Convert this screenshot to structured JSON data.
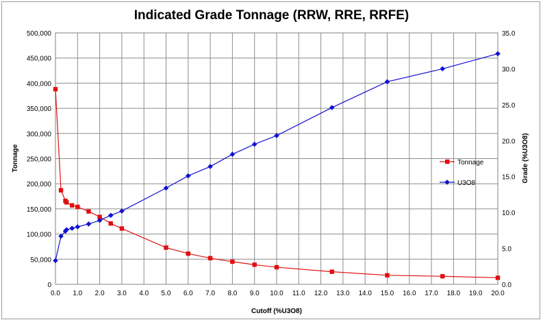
{
  "chart_data": {
    "type": "line",
    "title": "Indicated Grade Tonnage (RRW, RRE, RRFE)",
    "xlabel": "Cutoff (%U3O8)",
    "ylabel_left": "Tonnage",
    "ylabel_right": "Grade (%U3O8)",
    "xlim": [
      0,
      20
    ],
    "ylim_left": [
      0,
      500000
    ],
    "ylim_right": [
      0,
      35
    ],
    "grid": true,
    "legend_position": "right",
    "x_ticks": [
      "0.0",
      "1.0",
      "2.0",
      "3.0",
      "4.0",
      "5.0",
      "6.0",
      "7.0",
      "8.0",
      "9.0",
      "10.0",
      "11.0",
      "12.0",
      "13.0",
      "14.0",
      "15.0",
      "16.0",
      "17.0",
      "18.0",
      "19.0",
      "20.0"
    ],
    "y_left_ticks": [
      "0",
      "50,000",
      "100,000",
      "150,000",
      "200,000",
      "250,000",
      "300,000",
      "350,000",
      "400,000",
      "450,000",
      "500,000"
    ],
    "y_right_ticks": [
      "0.0",
      "5.0",
      "10.0",
      "15.0",
      "20.0",
      "25.0",
      "30.0",
      "35.0"
    ],
    "series": [
      {
        "name": "Tonnage",
        "axis": "left",
        "color": "#e01010",
        "marker": "square",
        "x": [
          0,
          0.25,
          0.45,
          0.5,
          0.75,
          1.0,
          1.5,
          2.0,
          2.5,
          3.0,
          5.0,
          6.0,
          7.0,
          8.0,
          9.0,
          10.0,
          12.5,
          15.0,
          17.5,
          20.0
        ],
        "values": [
          388000,
          187000,
          166000,
          163000,
          157000,
          154000,
          145000,
          134000,
          121000,
          111000,
          73000,
          61000,
          52000,
          45000,
          39000,
          34000,
          25000,
          18000,
          16000,
          13000
        ]
      },
      {
        "name": "U3O8",
        "axis": "right",
        "color": "#1010d0",
        "marker": "diamond",
        "x": [
          0,
          0.25,
          0.45,
          0.5,
          0.75,
          1.0,
          1.5,
          2.0,
          2.5,
          3.0,
          5.0,
          6.0,
          7.0,
          8.0,
          9.0,
          10.0,
          12.5,
          15.0,
          17.5,
          20.0
        ],
        "values": [
          3.3,
          6.7,
          7.4,
          7.6,
          7.8,
          8.0,
          8.4,
          8.9,
          9.6,
          10.2,
          13.4,
          15.1,
          16.4,
          18.1,
          19.5,
          20.7,
          24.6,
          28.2,
          30.0,
          32.1
        ]
      }
    ]
  }
}
